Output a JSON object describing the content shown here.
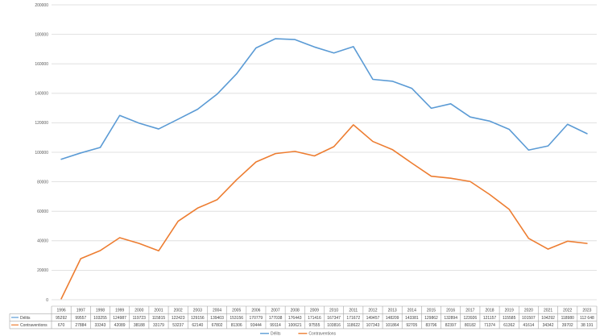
{
  "chart_data": {
    "type": "line",
    "title": "",
    "xlabel": "",
    "ylabel": "",
    "ylim": [
      0,
      200000
    ],
    "yticks": [
      "0",
      "20000",
      "40000",
      "60000",
      "80000",
      "100000",
      "120000",
      "140000",
      "160000",
      "180000",
      "200000"
    ],
    "grid": true,
    "legend_position": "bottom",
    "categories": [
      "1996",
      "1997",
      "1998",
      "1999",
      "2000",
      "2001",
      "2002",
      "2003",
      "2004",
      "2005",
      "2006",
      "2007",
      "2008",
      "2009",
      "2010",
      "2011",
      "2012",
      "2013",
      "2014",
      "2015",
      "2016",
      "2017",
      "2018",
      "2019",
      "2020",
      "2021",
      "2022",
      "2023"
    ],
    "series": [
      {
        "name": "Délits",
        "color": "#5B9BD5",
        "values": [
          95292,
          99557,
          103255,
          124987,
          119723,
          115815,
          122423,
          129156,
          139403,
          153156,
          170779,
          177038,
          176443,
          171416,
          167347,
          171672,
          149457,
          148209,
          143381,
          129862,
          132894,
          123926,
          121157,
          115585,
          101507,
          104292,
          118980,
          112648
        ],
        "labels": [
          "95292",
          "99557",
          "103255",
          "124987",
          "119723",
          "115815",
          "122423",
          "129156",
          "139403",
          "153156",
          "170779",
          "177038",
          "176443",
          "171416",
          "167347",
          "171672",
          "149457",
          "148209",
          "143381",
          "129862",
          "132894",
          "123926",
          "121157",
          "115585",
          "101507",
          "104292",
          "118980",
          "112 648"
        ]
      },
      {
        "name": "Contraventions",
        "color": "#ED7D31",
        "values": [
          670,
          27884,
          33343,
          42089,
          38188,
          33179,
          53237,
          62140,
          67802,
          81306,
          93444,
          99114,
          100621,
          97555,
          103816,
          118622,
          107343,
          101864,
          92705,
          83796,
          82397,
          80182,
          71374,
          61362,
          41614,
          34342,
          39702,
          38191
        ],
        "labels": [
          "670",
          "27884",
          "33343",
          "42089",
          "38188",
          "33179",
          "53237",
          "62140",
          "67802",
          "81306",
          "93444",
          "99114",
          "100621",
          "97555",
          "103816",
          "118622",
          "107343",
          "101864",
          "92705",
          "83796",
          "82397",
          "80182",
          "71374",
          "61362",
          "41614",
          "34342",
          "39702",
          "38 191"
        ]
      }
    ]
  }
}
